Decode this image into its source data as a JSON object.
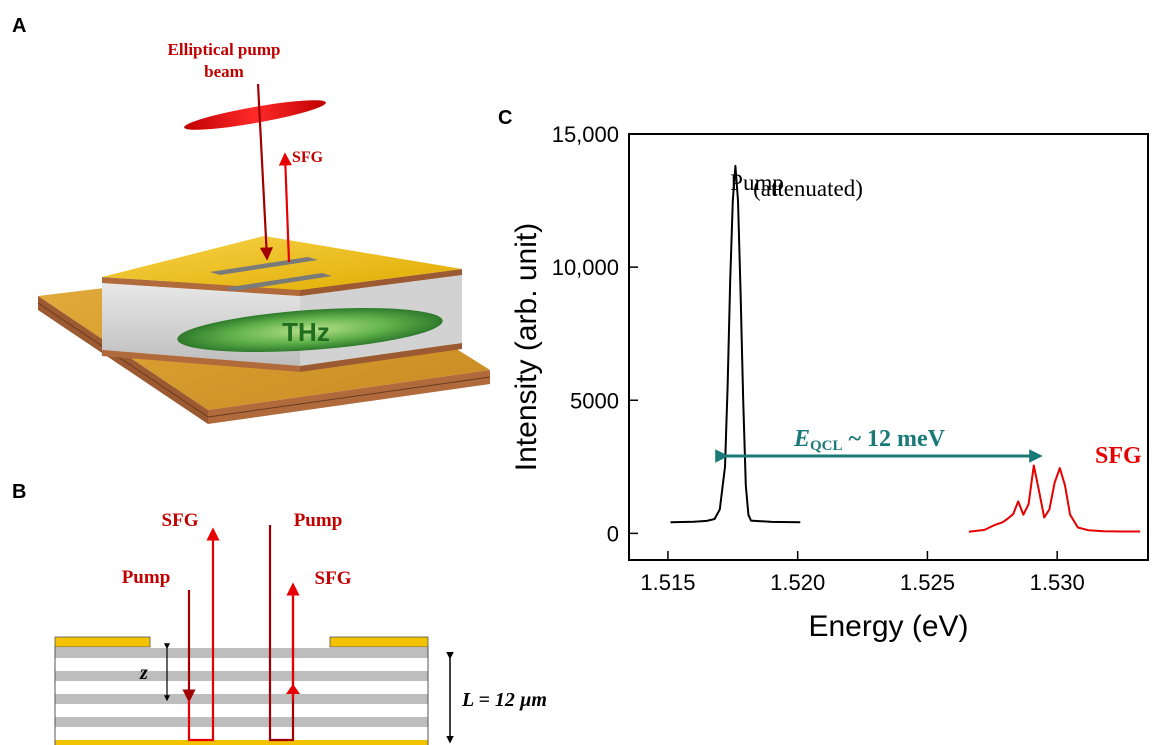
{
  "panels": {
    "a": {
      "letter": "A",
      "pump_label_line1": "Elliptical pump",
      "pump_label_line2": "beam",
      "sfg_label": "SFG",
      "thz_label": "THz",
      "colors": {
        "gold": "#f3c200",
        "copper": "#b06a3c",
        "substrate": "#d19a2e",
        "green": "#3e9a3a",
        "red": "#d90000"
      }
    },
    "b": {
      "letter": "B",
      "sfg_left": "SFG",
      "pump_right": "Pump",
      "pump_left": "Pump",
      "sfg_right": "SFG",
      "z_label": "z",
      "l_label": "L = 12 µm"
    },
    "c": {
      "letter": "C",
      "pump_annot_line1": "Pump",
      "pump_annot_line2": "(attenuated)",
      "eqcl_main": "E",
      "eqcl_sub": "QCL",
      "eqcl_rest": " ~ 12 meV",
      "sfg_annot": "SFG",
      "arrow_color": "#1a7a7a"
    }
  },
  "chart_data": {
    "type": "line",
    "xlabel": "Energy (eV)",
    "ylabel": "Intensity (arb. unit)",
    "xlim": [
      1.5135,
      1.5335
    ],
    "ylim": [
      -1000,
      15000
    ],
    "xticks": [
      1.515,
      1.52,
      1.525,
      1.53
    ],
    "xtick_labels": [
      "1.515",
      "1.520",
      "1.525",
      "1.530"
    ],
    "yticks": [
      0,
      5000,
      10000,
      15000
    ],
    "ytick_labels": [
      "0",
      "5000",
      "10,000",
      "15,000"
    ],
    "grid": false,
    "series": [
      {
        "color": "#000000",
        "points": [
          [
            1.5151,
            420
          ],
          [
            1.516,
            440
          ],
          [
            1.5165,
            470
          ],
          [
            1.5168,
            540
          ],
          [
            1.517,
            900
          ],
          [
            1.5172,
            2500
          ],
          [
            1.5173,
            5500
          ],
          [
            1.5174,
            9500
          ],
          [
            1.5175,
            12500
          ],
          [
            1.5176,
            13800
          ],
          [
            1.5177,
            12500
          ],
          [
            1.5178,
            9000
          ],
          [
            1.5179,
            5000
          ],
          [
            1.518,
            1800
          ],
          [
            1.5181,
            700
          ],
          [
            1.5182,
            480
          ],
          [
            1.519,
            430
          ],
          [
            1.5201,
            420
          ]
        ]
      },
      {
        "color": "#e60000",
        "points": [
          [
            1.5266,
            60
          ],
          [
            1.5272,
            130
          ],
          [
            1.5276,
            320
          ],
          [
            1.5279,
            420
          ],
          [
            1.5281,
            560
          ],
          [
            1.5283,
            720
          ],
          [
            1.5285,
            1200
          ],
          [
            1.5287,
            700
          ],
          [
            1.5289,
            1100
          ],
          [
            1.5291,
            2550
          ],
          [
            1.5293,
            1600
          ],
          [
            1.5295,
            600
          ],
          [
            1.5297,
            900
          ],
          [
            1.5299,
            1900
          ],
          [
            1.5301,
            2450
          ],
          [
            1.5303,
            1800
          ],
          [
            1.5305,
            700
          ],
          [
            1.5308,
            220
          ],
          [
            1.5312,
            120
          ],
          [
            1.5318,
            80
          ],
          [
            1.5325,
            70
          ],
          [
            1.5332,
            70
          ]
        ]
      }
    ]
  }
}
